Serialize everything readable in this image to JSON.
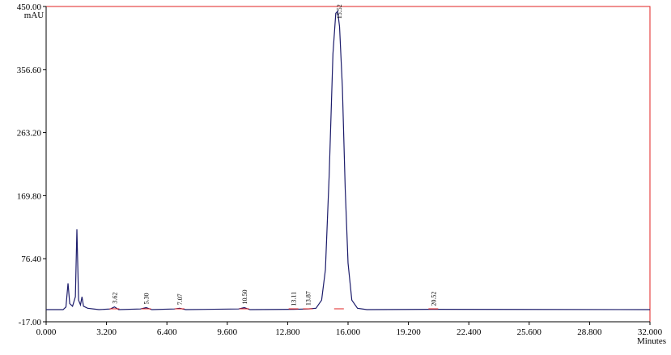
{
  "chart_data": {
    "type": "line",
    "y_unit": "mAU",
    "x_label": "Minutes",
    "xlim": [
      0,
      32
    ],
    "ylim": [
      -17,
      450
    ],
    "xticks": [
      {
        "value": 0,
        "label": "0.000"
      },
      {
        "value": 3.2,
        "label": "3.200"
      },
      {
        "value": 6.4,
        "label": "6.400"
      },
      {
        "value": 9.6,
        "label": "9.600"
      },
      {
        "value": 12.8,
        "label": "12.800"
      },
      {
        "value": 16,
        "label": "16.000"
      },
      {
        "value": 19.2,
        "label": "19.200"
      },
      {
        "value": 22.4,
        "label": "22.400"
      },
      {
        "value": 25.6,
        "label": "25.600"
      },
      {
        "value": 28.8,
        "label": "28.800"
      },
      {
        "value": 32,
        "label": "32.000"
      }
    ],
    "yticks": [
      {
        "value": -17,
        "label": "-17.00"
      },
      {
        "value": 76.4,
        "label": "76.40"
      },
      {
        "value": 169.8,
        "label": "169.80"
      },
      {
        "value": 263.2,
        "label": "263.20"
      },
      {
        "value": 356.6,
        "label": "356.60"
      },
      {
        "value": 450,
        "label": "450.00"
      }
    ],
    "series": [
      {
        "color": "#1c1c6b",
        "x": [
          0,
          0.9,
          1.05,
          1.16,
          1.25,
          1.4,
          1.55,
          1.63,
          1.72,
          1.82,
          1.9,
          1.98,
          2.2,
          2.8,
          3.4,
          3.62,
          3.85,
          5.0,
          5.3,
          5.6,
          6.8,
          7.07,
          7.4,
          10.2,
          10.5,
          10.8,
          13.11,
          13.87,
          14.3,
          14.6,
          14.8,
          15.0,
          15.2,
          15.35,
          15.45,
          15.55,
          15.7,
          15.85,
          16.0,
          16.2,
          16.5,
          17,
          20.52,
          32
        ],
        "values": [
          1,
          1,
          5,
          40,
          10,
          6,
          20,
          120,
          15,
          8,
          20,
          6,
          3,
          1,
          2,
          5,
          1,
          2,
          4,
          1,
          2,
          3,
          1,
          2,
          4,
          1,
          1.5,
          2,
          3,
          15,
          60,
          200,
          380,
          440,
          443,
          420,
          330,
          180,
          70,
          15,
          3,
          1,
          1.5,
          1
        ]
      }
    ],
    "peak_labels": [
      {
        "value": 3.62,
        "label": "3.62"
      },
      {
        "value": 5.3,
        "label": "5.30"
      },
      {
        "value": 7.07,
        "label": "7.07"
      },
      {
        "value": 10.5,
        "label": "10.50"
      },
      {
        "value": 13.11,
        "label": "13.11"
      },
      {
        "value": 13.87,
        "label": "13.87"
      },
      {
        "value": 15.52,
        "label": "15.52"
      },
      {
        "value": 20.52,
        "label": "20.52"
      }
    ]
  }
}
